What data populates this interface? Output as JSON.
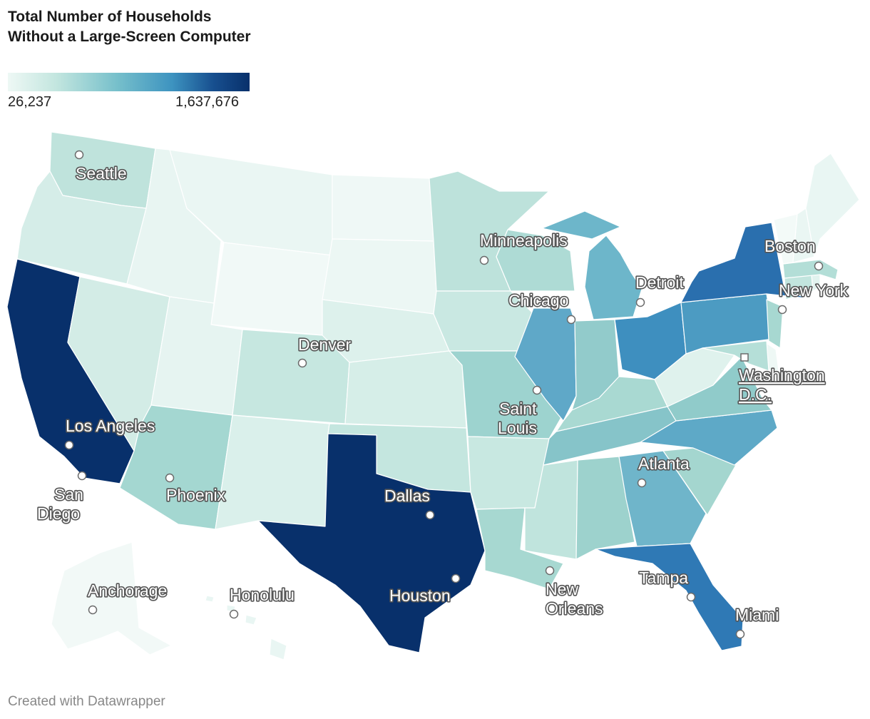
{
  "title": "Total Number of Households Without a Large-Screen Computer",
  "legend": {
    "min_label": "26,237",
    "max_label": "1,637,676",
    "min_value": 26237,
    "max_value": 1637676,
    "colors": [
      "#eef8f5",
      "#c3e6df",
      "#77c0cb",
      "#3d93c0",
      "#174f8f",
      "#08306b"
    ]
  },
  "credit": "Created with Datawrapper",
  "states": [
    {
      "id": "WA",
      "color": "#bfe3dc"
    },
    {
      "id": "OR",
      "color": "#d5ede8"
    },
    {
      "id": "CA",
      "color": "#08306b"
    },
    {
      "id": "NV",
      "color": "#d3ece6"
    },
    {
      "id": "ID",
      "color": "#e8f5f2"
    },
    {
      "id": "MT",
      "color": "#eaf6f3"
    },
    {
      "id": "WY",
      "color": "#f1f9f7"
    },
    {
      "id": "UT",
      "color": "#e6f4f1"
    },
    {
      "id": "AZ",
      "color": "#a4d7d1"
    },
    {
      "id": "CO",
      "color": "#c6e7e0"
    },
    {
      "id": "NM",
      "color": "#daf0eb"
    },
    {
      "id": "ND",
      "color": "#eff8f6"
    },
    {
      "id": "SD",
      "color": "#ecf7f4"
    },
    {
      "id": "NE",
      "color": "#ddf1ec"
    },
    {
      "id": "KS",
      "color": "#d6eee8"
    },
    {
      "id": "OK",
      "color": "#c4e6df"
    },
    {
      "id": "TX",
      "color": "#08306b"
    },
    {
      "id": "MN",
      "color": "#bde2db"
    },
    {
      "id": "IA",
      "color": "#c9e8e2"
    },
    {
      "id": "MO",
      "color": "#9dd3cf"
    },
    {
      "id": "AR",
      "color": "#c8e8e1"
    },
    {
      "id": "LA",
      "color": "#a7d8d1"
    },
    {
      "id": "WI",
      "color": "#aedbd5"
    },
    {
      "id": "IL",
      "color": "#5fa8c8"
    },
    {
      "id": "MI",
      "color": "#6db6ca"
    },
    {
      "id": "IN",
      "color": "#92cbcb"
    },
    {
      "id": "OH",
      "color": "#3e8fbf"
    },
    {
      "id": "KY",
      "color": "#a9d9d2"
    },
    {
      "id": "TN",
      "color": "#86c4c9"
    },
    {
      "id": "MS",
      "color": "#c0e4dd"
    },
    {
      "id": "AL",
      "color": "#9dd2cd"
    },
    {
      "id": "GA",
      "color": "#6fb5ca"
    },
    {
      "id": "FL",
      "color": "#2f79b5"
    },
    {
      "id": "SC",
      "color": "#a4d6cf"
    },
    {
      "id": "NC",
      "color": "#5ea9c7"
    },
    {
      "id": "VA",
      "color": "#90cbca"
    },
    {
      "id": "WV",
      "color": "#dff2ed"
    },
    {
      "id": "PA",
      "color": "#4c9bc2"
    },
    {
      "id": "NY",
      "color": "#2a6fae"
    },
    {
      "id": "NJ",
      "color": "#a7d8d1"
    },
    {
      "id": "DE",
      "color": "#eef8f5"
    },
    {
      "id": "MD",
      "color": "#b5dfd8"
    },
    {
      "id": "CT",
      "color": "#c2e5de"
    },
    {
      "id": "RI",
      "color": "#e2f3ef"
    },
    {
      "id": "MA",
      "color": "#b3ded7"
    },
    {
      "id": "VT",
      "color": "#f3faf8"
    },
    {
      "id": "NH",
      "color": "#eaf6f3"
    },
    {
      "id": "ME",
      "color": "#e9f6f3"
    },
    {
      "id": "AK",
      "color": "#f2f9f7"
    },
    {
      "id": "HI",
      "color": "#e9f6f3"
    }
  ],
  "cities": [
    {
      "name": "Seattle"
    },
    {
      "name": "Minneapolis"
    },
    {
      "name": "Boston"
    },
    {
      "name": "Detroit"
    },
    {
      "name": "New York"
    },
    {
      "name": "Chicago"
    },
    {
      "name": "Denver"
    },
    {
      "name": "Washington D.C.",
      "lines": [
        "Washington",
        "D.C."
      ]
    },
    {
      "name": "Saint Louis",
      "lines": [
        "Saint",
        "Louis"
      ]
    },
    {
      "name": "Los Angeles"
    },
    {
      "name": "San Diego",
      "lines": [
        "San",
        "Diego"
      ]
    },
    {
      "name": "Phoenix"
    },
    {
      "name": "Atlanta"
    },
    {
      "name": "Dallas"
    },
    {
      "name": "Anchorage"
    },
    {
      "name": "Honolulu"
    },
    {
      "name": "New Orleans",
      "lines": [
        "New",
        "Orleans"
      ]
    },
    {
      "name": "Tampa"
    },
    {
      "name": "Houston"
    },
    {
      "name": "Miami"
    }
  ]
}
